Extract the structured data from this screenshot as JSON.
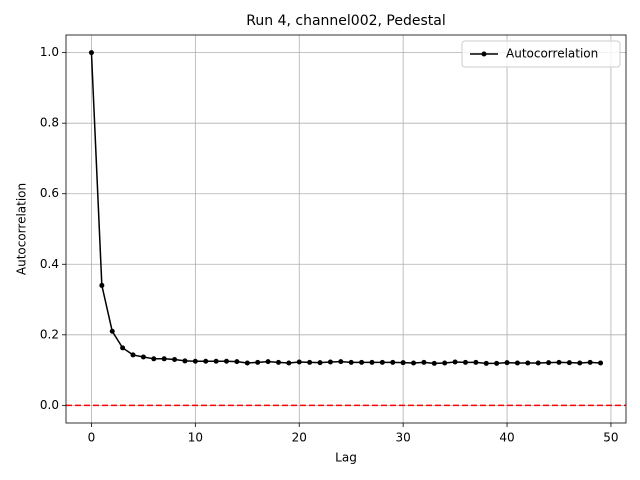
{
  "chart_data": {
    "type": "line",
    "title": "Run 4, channel002, Pedestal",
    "xlabel": "Lag",
    "ylabel": "Autocorrelation",
    "x": [
      0,
      1,
      2,
      3,
      4,
      5,
      6,
      7,
      8,
      9,
      10,
      11,
      12,
      13,
      14,
      15,
      16,
      17,
      18,
      19,
      20,
      21,
      22,
      23,
      24,
      25,
      26,
      27,
      28,
      29,
      30,
      31,
      32,
      33,
      34,
      35,
      36,
      37,
      38,
      39,
      40,
      41,
      42,
      43,
      44,
      45,
      46,
      47,
      48,
      49
    ],
    "series": [
      {
        "name": "Autocorrelation",
        "color": "#000000",
        "values": [
          1.0,
          0.34,
          0.21,
          0.163,
          0.143,
          0.137,
          0.132,
          0.132,
          0.13,
          0.126,
          0.125,
          0.125,
          0.125,
          0.125,
          0.124,
          0.12,
          0.122,
          0.124,
          0.122,
          0.12,
          0.123,
          0.122,
          0.121,
          0.123,
          0.124,
          0.122,
          0.122,
          0.122,
          0.122,
          0.122,
          0.121,
          0.12,
          0.122,
          0.119,
          0.12,
          0.123,
          0.122,
          0.122,
          0.119,
          0.119,
          0.121,
          0.12,
          0.12,
          0.12,
          0.121,
          0.122,
          0.121,
          0.12,
          0.122,
          0.12
        ]
      }
    ],
    "xlim": [
      -2.45,
      51.45
    ],
    "xticks": [
      0,
      10,
      20,
      30,
      40,
      50
    ],
    "ylim": [
      -0.05,
      1.05
    ],
    "yticks": [
      {
        "value": 0,
        "label": "0.0"
      },
      {
        "value": 0.2,
        "label": "0.2"
      },
      {
        "value": 0.4,
        "label": "0.4"
      },
      {
        "value": 0.6,
        "label": "0.6"
      },
      {
        "value": 0.8,
        "label": "0.8"
      },
      {
        "value": 1,
        "label": "1.0"
      }
    ],
    "grid": true,
    "legend": "upper-right",
    "reference_line": {
      "y": 0,
      "color": "#ff0000"
    }
  }
}
